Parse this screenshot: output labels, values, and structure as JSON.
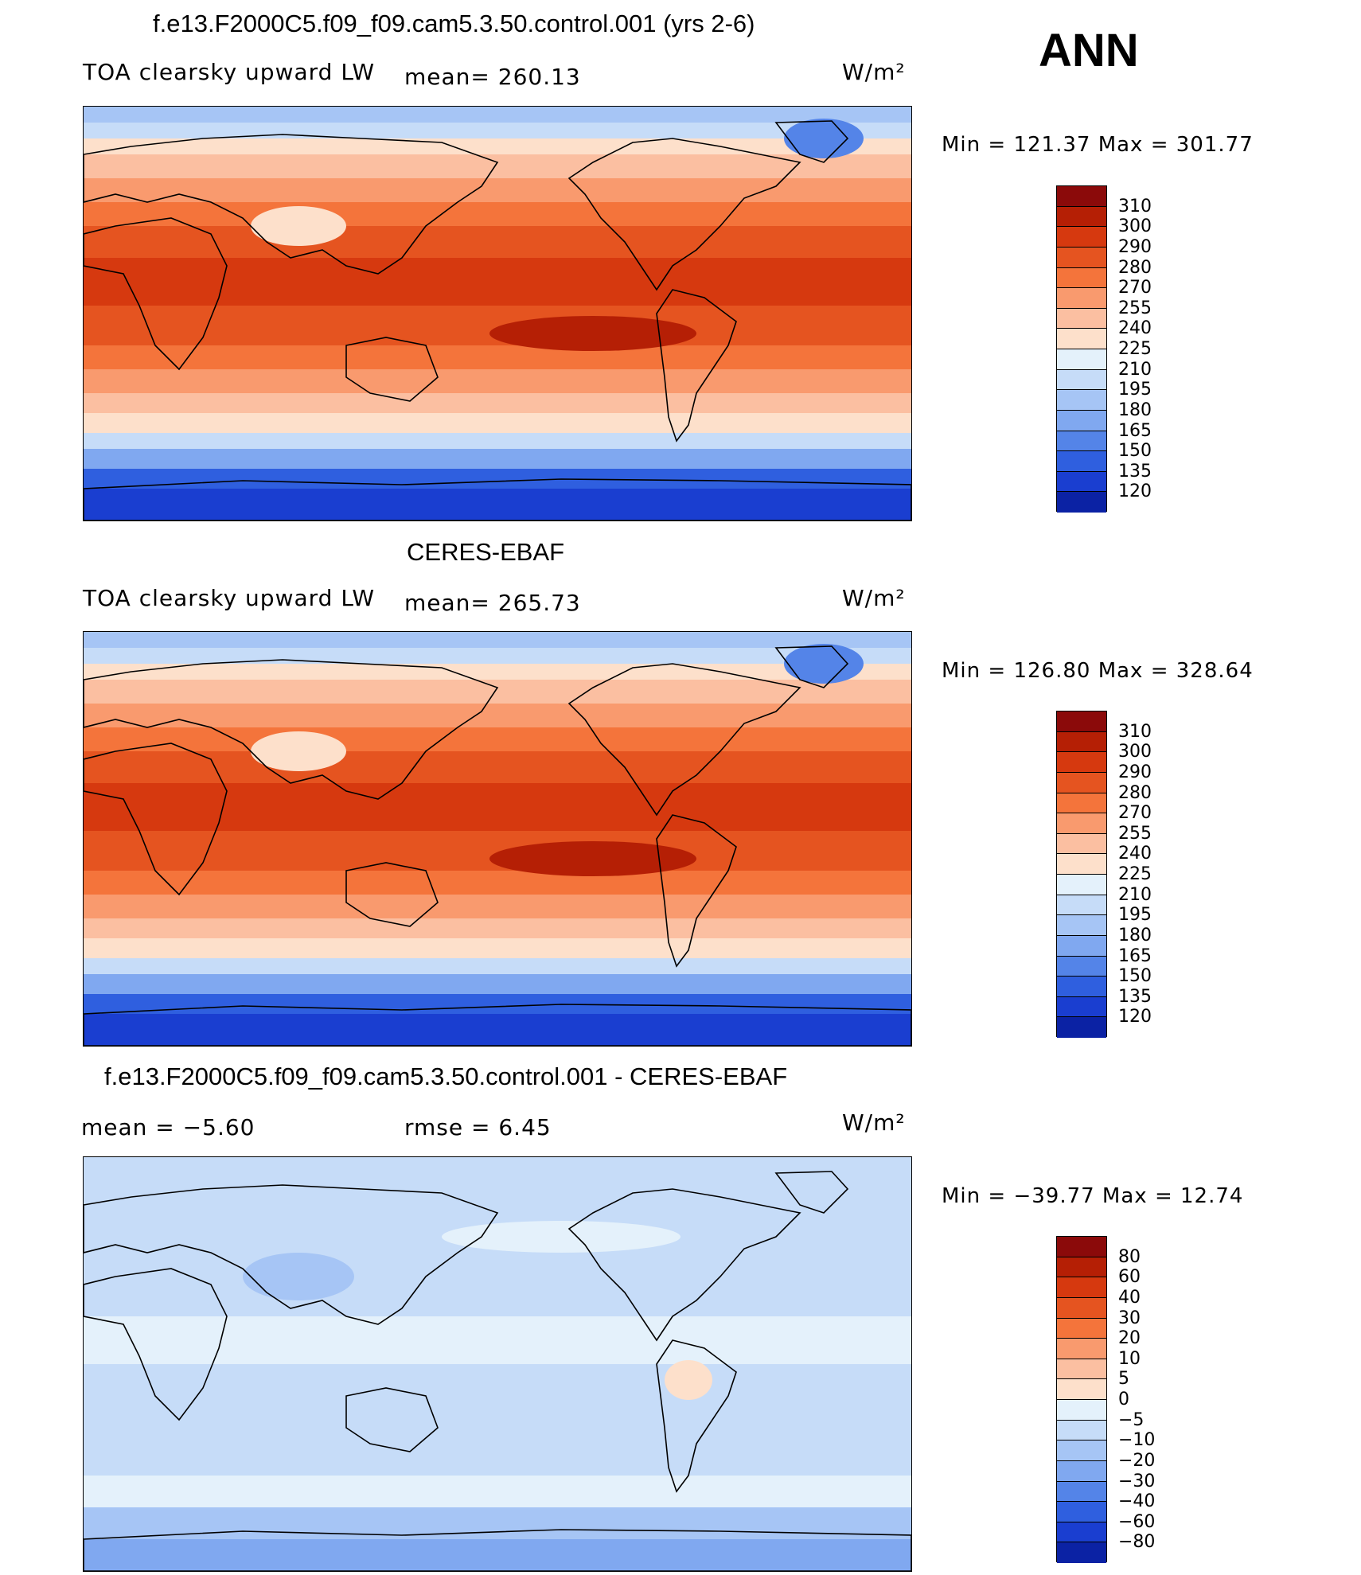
{
  "corner_label": "ANN",
  "panels": [
    {
      "title": "f.e13.F2000C5.f09_f09.cam5.3.50.control.001 (yrs 2-6)",
      "left_label": "TOA clearsky upward LW",
      "mid_label": "mean=  260.13",
      "unit": "W/m²",
      "min_max": "Min  =  121.37  Max  =  301.77",
      "type": "field",
      "colorbar": {
        "labels": [
          "310",
          "300",
          "290",
          "280",
          "270",
          "255",
          "240",
          "225",
          "210",
          "195",
          "180",
          "165",
          "150",
          "135",
          "120"
        ],
        "colors": [
          "#8b0a0a",
          "#b51f05",
          "#d6390f",
          "#e55420",
          "#f4743b",
          "#f99a6e",
          "#fbbfa1",
          "#fde0cb",
          "#e4f1fb",
          "#c6dcf8",
          "#a6c5f5",
          "#80a8f0",
          "#5484e8",
          "#2f5fdf",
          "#1a3ed0",
          "#0b22a4"
        ]
      }
    },
    {
      "title": "CERES-EBAF",
      "left_label": "TOA clearsky upward LW",
      "mid_label": "mean=  265.73",
      "unit": "W/m²",
      "min_max": "Min  =  126.80  Max  =  328.64",
      "type": "field",
      "colorbar": {
        "labels": [
          "310",
          "300",
          "290",
          "280",
          "270",
          "255",
          "240",
          "225",
          "210",
          "195",
          "180",
          "165",
          "150",
          "135",
          "120"
        ],
        "colors": [
          "#8b0a0a",
          "#b51f05",
          "#d6390f",
          "#e55420",
          "#f4743b",
          "#f99a6e",
          "#fbbfa1",
          "#fde0cb",
          "#e4f1fb",
          "#c6dcf8",
          "#a6c5f5",
          "#80a8f0",
          "#5484e8",
          "#2f5fdf",
          "#1a3ed0",
          "#0b22a4"
        ]
      }
    },
    {
      "title": "f.e13.F2000C5.f09_f09.cam5.3.50.control.001 - CERES-EBAF",
      "left_label": "mean  =    −5.60",
      "mid_label": "rmse  =     6.45",
      "unit": "W/m²",
      "min_max": "Min  =  −39.77  Max  =    12.74",
      "type": "diff",
      "colorbar": {
        "labels": [
          "80",
          "60",
          "40",
          "30",
          "20",
          "10",
          "5",
          "0",
          "−5",
          "−10",
          "−20",
          "−30",
          "−40",
          "−60",
          "−80"
        ],
        "colors": [
          "#8b0a0a",
          "#b51f05",
          "#d6390f",
          "#e55420",
          "#f4743b",
          "#f99a6e",
          "#fbbfa1",
          "#fde0cb",
          "#e4f1fb",
          "#c6dcf8",
          "#a6c5f5",
          "#80a8f0",
          "#5484e8",
          "#2f5fdf",
          "#1a3ed0",
          "#0b22a4"
        ]
      }
    }
  ]
}
